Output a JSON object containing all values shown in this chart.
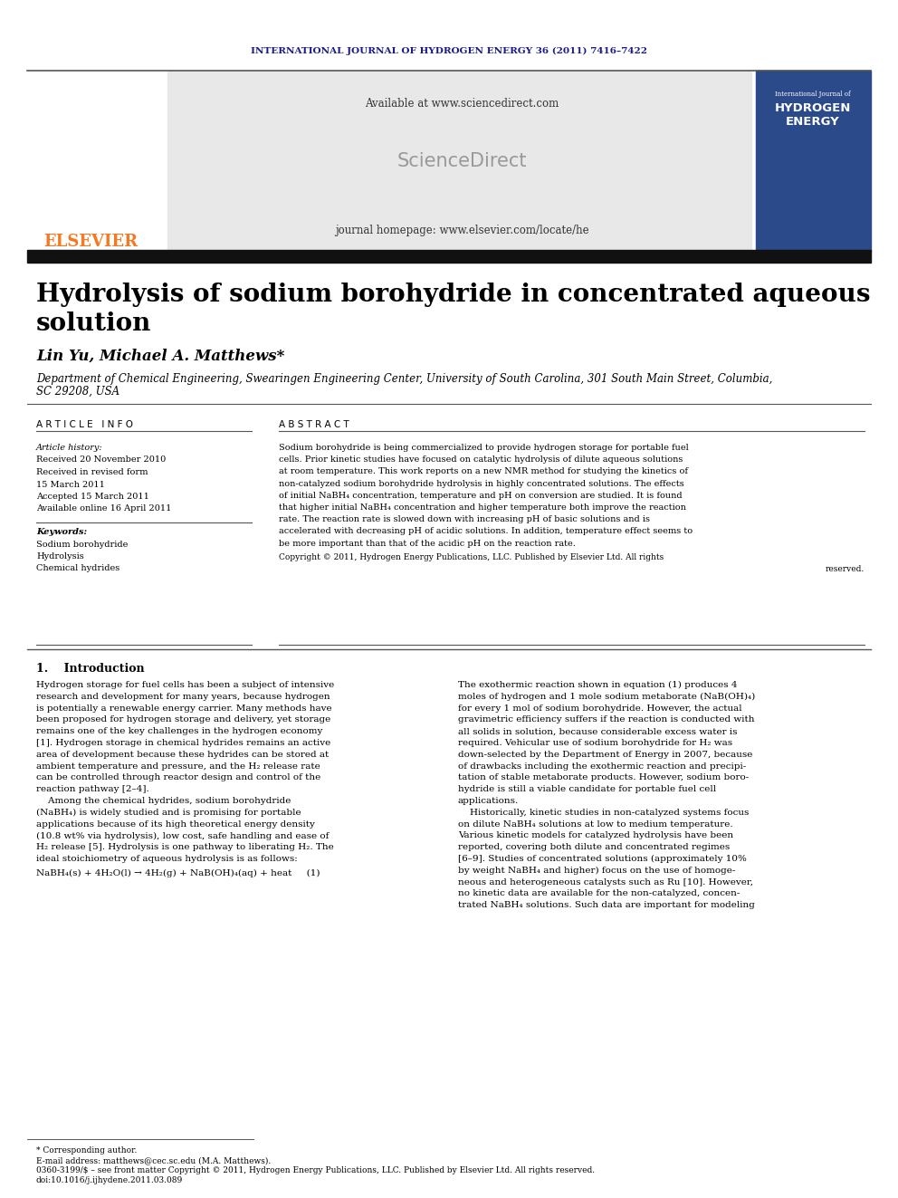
{
  "journal_header": "INTERNATIONAL JOURNAL OF HYDROGEN ENERGY 36 (2011) 7416–7422",
  "journal_header_color": "#1a1a8c",
  "available_text": "Available at www.sciencedirect.com",
  "sciencedirect_text": "ScienceDirect",
  "homepage_text": "journal homepage: www.elsevier.com/locate/he",
  "elsevier_text": "ELSEVIER",
  "elsevier_color": "#f47920",
  "title_line1": "Hydrolysis of sodium borohydride in concentrated aqueous",
  "title_line2": "solution",
  "title_fontsize": 20,
  "authors": "Lin Yu, Michael A. Matthews*",
  "authors_fontsize": 12,
  "affiliation_line1": "Department of Chemical Engineering, Swearingen Engineering Center, University of South Carolina, 301 South Main Street, Columbia,",
  "affiliation_line2": "SC 29208, USA",
  "affiliation_fontsize": 8.5,
  "article_info_header": "A R T I C L E   I N F O",
  "abstract_header": "A B S T R A C T",
  "article_history_label": "Article history:",
  "received_1": "Received 20 November 2010",
  "received_revised": "Received in revised form",
  "revised_date": "15 March 2011",
  "accepted": "Accepted 15 March 2011",
  "available_online": "Available online 16 April 2011",
  "keywords_label": "Keywords:",
  "keyword1": "Sodium borohydride",
  "keyword2": "Hydrolysis",
  "keyword3": "Chemical hydrides",
  "copyright_text_1": "Copyright © 2011, Hydrogen Energy Publications, LLC. Published by Elsevier Ltd. All rights",
  "copyright_text_2": "reserved.",
  "intro_header": "1.    Introduction",
  "footnote_star": "* Corresponding author.",
  "footnote_email": "E-mail address: matthews@cec.sc.edu (M.A. Matthews).",
  "footnote_issn": "0360-3199/$ – see front matter Copyright © 2011, Hydrogen Energy Publications, LLC. Published by Elsevier Ltd. All rights reserved.",
  "footnote_doi": "doi:10.1016/j.ijhydene.2011.03.089",
  "bg_color": "#ffffff",
  "dark_bar_color": "#111111",
  "gray_box_color": "#e8e8e8",
  "text_color": "#000000",
  "small_fontsize": 7.0,
  "body_fontsize": 7.5,
  "abstract_lines": [
    "Sodium borohydride is being commercialized to provide hydrogen storage for portable fuel",
    "cells. Prior kinetic studies have focused on catalytic hydrolysis of dilute aqueous solutions",
    "at room temperature. This work reports on a new NMR method for studying the kinetics of",
    "non-catalyzed sodium borohydride hydrolysis in highly concentrated solutions. The effects",
    "of initial NaBH₄ concentration, temperature and pH on conversion are studied. It is found",
    "that higher initial NaBH₄ concentration and higher temperature both improve the reaction",
    "rate. The reaction rate is slowed down with increasing pH of basic solutions and is",
    "accelerated with decreasing pH of acidic solutions. In addition, temperature effect seems to",
    "be more important than that of the acidic pH on the reaction rate."
  ],
  "left_intro_lines": [
    "Hydrogen storage for fuel cells has been a subject of intensive",
    "research and development for many years, because hydrogen",
    "is potentially a renewable energy carrier. Many methods have",
    "been proposed for hydrogen storage and delivery, yet storage",
    "remains one of the key challenges in the hydrogen economy",
    "[1]. Hydrogen storage in chemical hydrides remains an active",
    "area of development because these hydrides can be stored at",
    "ambient temperature and pressure, and the H₂ release rate",
    "can be controlled through reactor design and control of the",
    "reaction pathway [2–4].",
    "    Among the chemical hydrides, sodium borohydride",
    "(NaBH₄) is widely studied and is promising for portable",
    "applications because of its high theoretical energy density",
    "(10.8 wt% via hydrolysis), low cost, safe handling and ease of",
    "H₂ release [5]. Hydrolysis is one pathway to liberating H₂. The",
    "ideal stoichiometry of aqueous hydrolysis is as follows:"
  ],
  "equation_line": "NaBH₄(s) + 4H₂O(l) → 4H₂(g) + NaB(OH)₄(aq) + heat     (1)",
  "right_intro_lines": [
    "The exothermic reaction shown in equation (1) produces 4",
    "moles of hydrogen and 1 mole sodium metaborate (NaB(OH)₄)",
    "for every 1 mol of sodium borohydride. However, the actual",
    "gravimetric efficiency suffers if the reaction is conducted with",
    "all solids in solution, because considerable excess water is",
    "required. Vehicular use of sodium borohydride for H₂ was",
    "down-selected by the Department of Energy in 2007, because",
    "of drawbacks including the exothermic reaction and precipi-",
    "tation of stable metaborate products. However, sodium boro-",
    "hydride is still a viable candidate for portable fuel cell",
    "applications.",
    "    Historically, kinetic studies in non-catalyzed systems focus",
    "on dilute NaBH₄ solutions at low to medium temperature.",
    "Various kinetic models for catalyzed hydrolysis have been",
    "reported, covering both dilute and concentrated regimes",
    "[6–9]. Studies of concentrated solutions (approximately 10%",
    "by weight NaBH₄ and higher) focus on the use of homoge-",
    "neous and heterogeneous catalysts such as Ru [10]. However,",
    "no kinetic data are available for the non-catalyzed, concen-",
    "trated NaBH₄ solutions. Such data are important for modeling"
  ]
}
